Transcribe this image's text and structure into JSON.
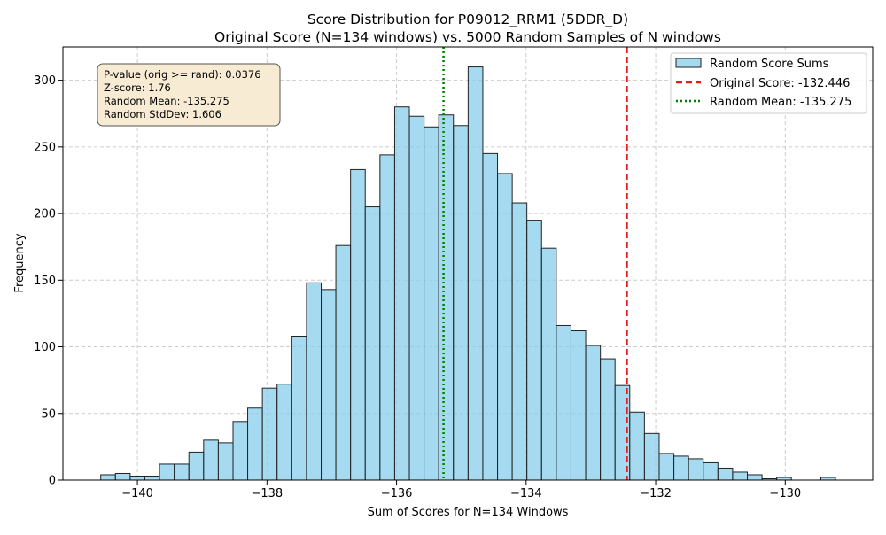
{
  "chart_data": {
    "type": "bar",
    "title": "Score Distribution for P09012_RRM1 (5DDR_D)",
    "subtitle": "Original Score (N=134 windows) vs. 5000 Random Samples of N windows",
    "xlabel": "Sum of Scores for N=134 Windows",
    "ylabel": "Frequency",
    "xlim": [
      -141.15,
      -128.65
    ],
    "ylim": [
      0,
      325
    ],
    "xticks": [
      -140,
      -138,
      -136,
      -134,
      -132,
      -130
    ],
    "xtick_labels": [
      "−140",
      "−138",
      "−136",
      "−134",
      "−132",
      "−130"
    ],
    "yticks": [
      0,
      50,
      100,
      150,
      200,
      250,
      300
    ],
    "grid": true,
    "bin_width": 0.2268,
    "series": [
      {
        "name": "Random Score Sums",
        "color": "#87ceeb",
        "bins": [
          {
            "x0": -140.566,
            "count": 4
          },
          {
            "x0": -140.339,
            "count": 5
          },
          {
            "x0": -140.112,
            "count": 3
          },
          {
            "x0": -139.885,
            "count": 3
          },
          {
            "x0": -139.659,
            "count": 12
          },
          {
            "x0": -139.432,
            "count": 12
          },
          {
            "x0": -139.205,
            "count": 21
          },
          {
            "x0": -138.978,
            "count": 30
          },
          {
            "x0": -138.751,
            "count": 28
          },
          {
            "x0": -138.524,
            "count": 44
          },
          {
            "x0": -138.298,
            "count": 54
          },
          {
            "x0": -138.071,
            "count": 69
          },
          {
            "x0": -137.844,
            "count": 72
          },
          {
            "x0": -137.617,
            "count": 108
          },
          {
            "x0": -137.39,
            "count": 148
          },
          {
            "x0": -137.163,
            "count": 143
          },
          {
            "x0": -136.937,
            "count": 176
          },
          {
            "x0": -136.71,
            "count": 233
          },
          {
            "x0": -136.483,
            "count": 205
          },
          {
            "x0": -136.256,
            "count": 244
          },
          {
            "x0": -136.029,
            "count": 280
          },
          {
            "x0": -135.802,
            "count": 273
          },
          {
            "x0": -135.576,
            "count": 265
          },
          {
            "x0": -135.349,
            "count": 274
          },
          {
            "x0": -135.122,
            "count": 266
          },
          {
            "x0": -134.895,
            "count": 310
          },
          {
            "x0": -134.668,
            "count": 245
          },
          {
            "x0": -134.441,
            "count": 230
          },
          {
            "x0": -134.215,
            "count": 208
          },
          {
            "x0": -133.988,
            "count": 195
          },
          {
            "x0": -133.761,
            "count": 174
          },
          {
            "x0": -133.534,
            "count": 116
          },
          {
            "x0": -133.307,
            "count": 112
          },
          {
            "x0": -133.08,
            "count": 101
          },
          {
            "x0": -132.854,
            "count": 91
          },
          {
            "x0": -132.627,
            "count": 71
          },
          {
            "x0": -132.4,
            "count": 51
          },
          {
            "x0": -132.173,
            "count": 35
          },
          {
            "x0": -131.946,
            "count": 20
          },
          {
            "x0": -131.719,
            "count": 18
          },
          {
            "x0": -131.493,
            "count": 16
          },
          {
            "x0": -131.266,
            "count": 13
          },
          {
            "x0": -131.039,
            "count": 9
          },
          {
            "x0": -130.812,
            "count": 6
          },
          {
            "x0": -130.585,
            "count": 4
          },
          {
            "x0": -130.358,
            "count": 1
          },
          {
            "x0": -130.132,
            "count": 2
          },
          {
            "x0": -129.905,
            "count": 0
          },
          {
            "x0": -129.678,
            "count": 0
          },
          {
            "x0": -129.451,
            "count": 2
          }
        ]
      },
      {
        "name": "Original Score: -132.446",
        "type": "vline",
        "x": -132.446,
        "color": "#e41a1c",
        "style": "dashed"
      },
      {
        "name": "Random Mean: -135.275",
        "type": "vline",
        "x": -135.275,
        "color": "#008000",
        "style": "dotted"
      }
    ],
    "legend_position": "top-right",
    "stats_box": {
      "lines": [
        "P-value (orig >= rand): 0.0376",
        "Z-score: 1.76",
        "Random Mean: -135.275",
        "Random StdDev: 1.606"
      ],
      "background": "#f8ebd4",
      "position": "top-left"
    }
  }
}
